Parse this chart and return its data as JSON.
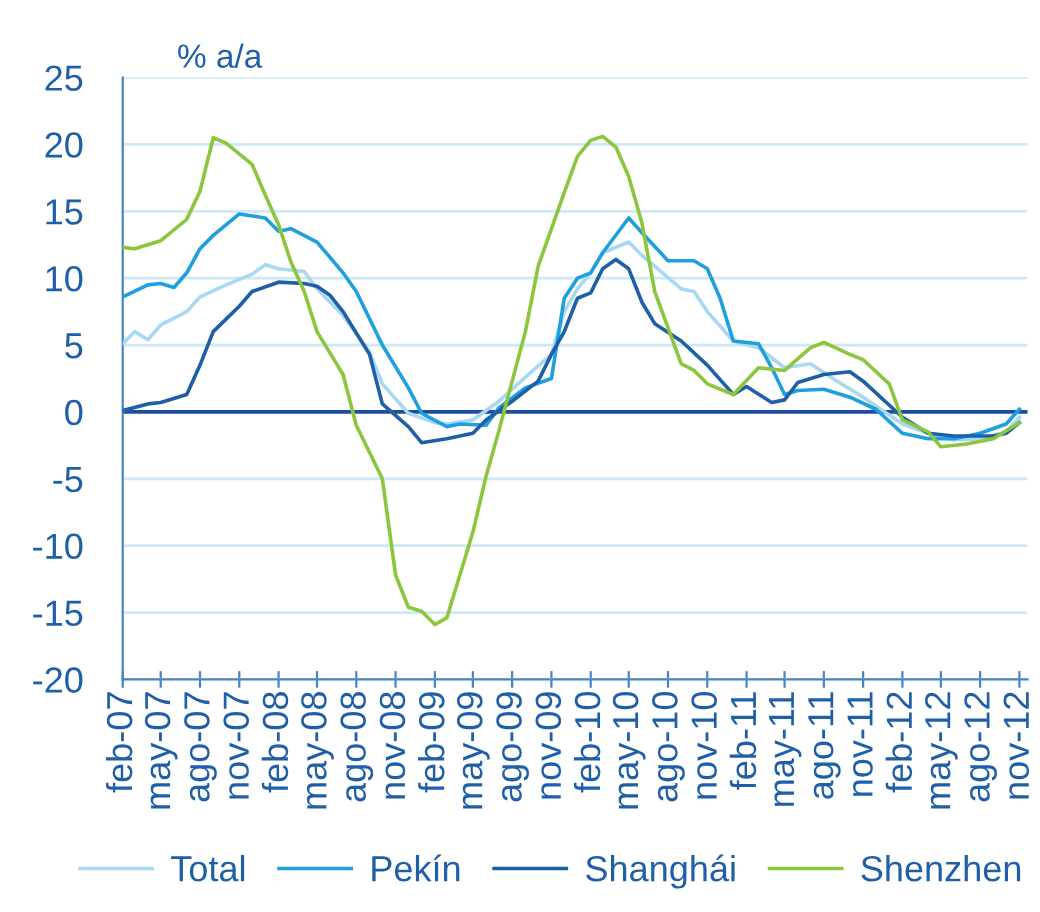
{
  "chart_data": {
    "type": "line",
    "ylabel": "% a/a",
    "xlim": [
      "2007-02",
      "2012-11-20"
    ],
    "xticks": [
      {
        "value": "2007-02",
        "label": "feb-07"
      },
      {
        "value": "2007-05",
        "label": "may-07"
      },
      {
        "value": "2007-08",
        "label": "ago-07"
      },
      {
        "value": "2007-11",
        "label": "nov-07"
      },
      {
        "value": "2008-02",
        "label": "feb-08"
      },
      {
        "value": "2008-05",
        "label": "may-08"
      },
      {
        "value": "2008-08",
        "label": "ago-08"
      },
      {
        "value": "2008-11",
        "label": "nov-08"
      },
      {
        "value": "2009-02",
        "label": "feb-09"
      },
      {
        "value": "2009-05",
        "label": "may-09"
      },
      {
        "value": "2009-08",
        "label": "ago-09"
      },
      {
        "value": "2009-11",
        "label": "nov-09"
      },
      {
        "value": "2010-02",
        "label": "feb-10"
      },
      {
        "value": "2010-05",
        "label": "may-10"
      },
      {
        "value": "2010-08",
        "label": "ago-10"
      },
      {
        "value": "2010-11",
        "label": "nov-10"
      },
      {
        "value": "2011-02",
        "label": "feb-11"
      },
      {
        "value": "2011-05",
        "label": "may-11"
      },
      {
        "value": "2011-08",
        "label": "ago-11"
      },
      {
        "value": "2011-11",
        "label": "nov-11"
      },
      {
        "value": "2012-02",
        "label": "feb-12"
      },
      {
        "value": "2012-05",
        "label": "may-12"
      },
      {
        "value": "2012-08",
        "label": "ago-12"
      },
      {
        "value": "2012-11",
        "label": "nov-12"
      }
    ],
    "ylim": [
      -20,
      25
    ],
    "yticks": [
      -20,
      -15,
      -10,
      -5,
      0,
      5,
      10,
      15,
      20,
      25
    ],
    "grid": "y",
    "legend": "bottom",
    "ref_lines": [
      {
        "axis": "y",
        "value": 0,
        "color": "#1f4e9c"
      }
    ],
    "series": [
      {
        "name": "Total",
        "color": "#a8d8f2",
        "x": [
          "2007-02",
          "2007-03",
          "2007-04",
          "2007-05",
          "2007-07",
          "2007-08",
          "2007-10",
          "2007-12",
          "2008-01",
          "2008-02",
          "2008-04",
          "2008-05",
          "2008-07",
          "2008-09",
          "2008-10",
          "2008-12",
          "2009-02",
          "2009-03",
          "2009-05",
          "2009-07",
          "2009-09",
          "2009-11",
          "2009-12",
          "2010-01",
          "2010-02",
          "2010-03",
          "2010-05",
          "2010-06",
          "2010-09",
          "2010-10",
          "2010-11",
          "2011-01",
          "2011-03",
          "2011-05",
          "2011-07",
          "2011-09",
          "2011-11",
          "2012-02",
          "2012-04",
          "2012-06",
          "2012-08",
          "2012-10",
          "2012-11"
        ],
        "values": [
          5.1,
          6.0,
          5.4,
          6.5,
          7.5,
          8.6,
          9.5,
          10.3,
          11,
          10.7,
          10.5,
          9.2,
          7.2,
          4.5,
          2.1,
          -0.1,
          -0.8,
          -0.9,
          -0.6,
          0.8,
          2.6,
          4.3,
          7.5,
          9.2,
          10.4,
          11.9,
          12.7,
          11.7,
          9.2,
          9,
          7.5,
          5.3,
          4.8,
          3.3,
          3.6,
          2.3,
          1.1,
          -0.9,
          -1.6,
          -2.1,
          -2,
          -1.5,
          -0.4
        ]
      },
      {
        "name": "Pekín",
        "color": "#1ea0e0",
        "x": [
          "2007-02",
          "2007-04",
          "2007-05",
          "2007-06",
          "2007-07",
          "2007-08",
          "2007-09",
          "2007-11",
          "2008-01",
          "2008-02",
          "2008-03",
          "2008-05",
          "2008-07",
          "2008-08",
          "2008-10",
          "2008-12",
          "2009-01",
          "2009-03",
          "2009-04",
          "2009-06",
          "2009-07",
          "2009-09",
          "2009-11",
          "2009-12",
          "2010-01",
          "2010-02",
          "2010-03",
          "2010-05",
          "2010-06",
          "2010-08",
          "2010-10",
          "2010-11",
          "2010-12",
          "2011-01",
          "2011-03",
          "2011-04",
          "2011-05",
          "2011-06",
          "2011-08",
          "2011-10",
          "2011-12",
          "2012-02",
          "2012-04",
          "2012-06",
          "2012-08",
          "2012-10",
          "2012-11"
        ],
        "values": [
          8.6,
          9.5,
          9.6,
          9.3,
          10.4,
          12.2,
          13.2,
          14.8,
          14.5,
          13.5,
          13.7,
          12.7,
          10.4,
          9,
          5,
          1.8,
          -0.1,
          -1.1,
          -0.9,
          -1,
          0.3,
          1.8,
          2.5,
          8.5,
          10,
          10.4,
          11.9,
          14.5,
          13.4,
          11.3,
          11.3,
          10.7,
          8.5,
          5.3,
          5.1,
          3.3,
          1.3,
          1.6,
          1.7,
          1.1,
          0.2,
          -1.6,
          -2,
          -2,
          -1.6,
          -0.9,
          0.2
        ]
      },
      {
        "name": "Shanghái",
        "color": "#1f5fa8",
        "x": [
          "2007-02",
          "2007-04",
          "2007-05",
          "2007-07",
          "2007-08",
          "2007-09",
          "2007-11",
          "2007-12",
          "2008-02",
          "2008-04",
          "2008-05",
          "2008-06",
          "2008-07",
          "2008-09",
          "2008-10",
          "2008-12",
          "2009-01",
          "2009-03",
          "2009-05",
          "2009-06",
          "2009-08",
          "2009-10",
          "2009-11",
          "2009-12",
          "2010-01",
          "2010-02",
          "2010-03",
          "2010-04",
          "2010-05",
          "2010-06",
          "2010-07",
          "2010-09",
          "2010-11",
          "2011-01",
          "2011-02",
          "2011-04",
          "2011-05",
          "2011-06",
          "2011-08",
          "2011-10",
          "2011-11",
          "2012-02",
          "2012-04",
          "2012-06",
          "2012-09",
          "2012-10",
          "2012-11"
        ],
        "values": [
          0.1,
          0.6,
          0.7,
          1.3,
          3.5,
          6,
          7.9,
          9,
          9.7,
          9.6,
          9.4,
          8.7,
          7.5,
          4.3,
          0.6,
          -1.1,
          -2.3,
          -2,
          -1.6,
          -0.6,
          0.8,
          2.3,
          4.3,
          6,
          8.5,
          8.9,
          10.7,
          11.4,
          10.7,
          8.2,
          6.6,
          5.3,
          3.5,
          1.3,
          1.9,
          0.7,
          0.9,
          2.2,
          2.8,
          3,
          2.3,
          -0.4,
          -1.6,
          -1.8,
          -1.8,
          -1.6,
          -0.8
        ]
      },
      {
        "name": "Shenzhen",
        "color": "#8cc63f",
        "x": [
          "2007-02",
          "2007-03",
          "2007-05",
          "2007-07",
          "2007-08",
          "2007-09",
          "2007-10",
          "2007-12",
          "2008-01",
          "2008-02",
          "2008-03",
          "2008-04",
          "2008-05",
          "2008-07",
          "2008-08",
          "2008-10",
          "2008-11",
          "2008-12",
          "2009-01",
          "2009-02",
          "2009-03",
          "2009-05",
          "2009-06",
          "2009-07",
          "2009-09",
          "2009-10",
          "2009-12",
          "2010-01",
          "2010-02",
          "2010-03",
          "2010-04",
          "2010-05",
          "2010-06",
          "2010-07",
          "2010-09",
          "2010-10",
          "2010-11",
          "2011-01",
          "2011-03",
          "2011-05",
          "2011-07",
          "2011-08",
          "2011-10",
          "2011-11",
          "2012-01",
          "2012-02",
          "2012-04",
          "2012-05",
          "2012-07",
          "2012-09",
          "2012-11"
        ],
        "values": [
          12.3,
          12.2,
          12.8,
          14.4,
          16.5,
          20.5,
          20.1,
          18.5,
          16.2,
          14,
          11.2,
          9,
          6,
          2.8,
          -1,
          -5,
          -12.2,
          -14.6,
          -14.9,
          -15.9,
          -15.4,
          -9,
          -4.8,
          -1.4,
          6,
          10.9,
          16.4,
          19.1,
          20.3,
          20.6,
          19.8,
          17.6,
          14.1,
          9,
          3.6,
          3.1,
          2.1,
          1.3,
          3.3,
          3.1,
          4.8,
          5.2,
          4.3,
          3.9,
          2.1,
          -0.6,
          -1.5,
          -2.6,
          -2.4,
          -2.0,
          -0.8
        ]
      }
    ]
  }
}
